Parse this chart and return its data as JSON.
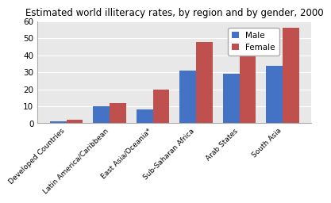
{
  "title": "Estimated world illiteracy rates, by region and by gender, 2000",
  "categories": [
    "Developed Countries",
    "Latin America/Caribbean",
    "East Asia/Oceania*",
    "Sub-Saharan Africa",
    "Arab States",
    "South Asia"
  ],
  "male_values": [
    1,
    10,
    8,
    31,
    29,
    34
  ],
  "female_values": [
    2,
    12,
    20,
    48,
    53,
    56
  ],
  "male_color": "#4472C4",
  "female_color": "#C0504D",
  "ylim": [
    0,
    60
  ],
  "yticks": [
    0,
    10,
    20,
    30,
    40,
    50,
    60
  ],
  "legend_labels": [
    "Male",
    "Female"
  ],
  "bar_width": 0.38,
  "background_color": "#FFFFFF",
  "plot_bg_color": "#E8E8E8",
  "grid_color": "#FFFFFF",
  "title_fontsize": 8.5
}
